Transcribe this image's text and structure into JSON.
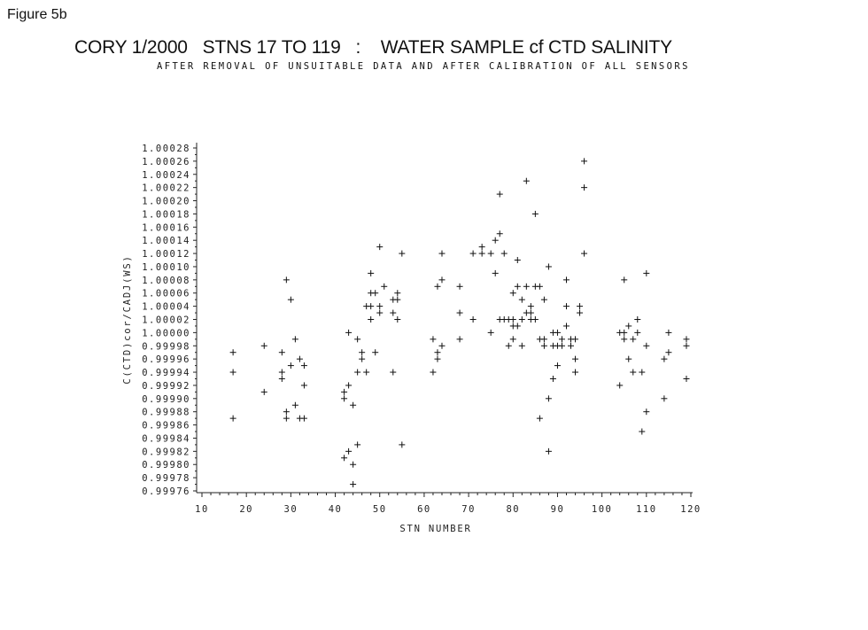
{
  "figure_label": "Figure 5b",
  "chart_data": {
    "type": "scatter",
    "title": "CORY 1/2000   STNS 17 TO 119   :    WATER SAMPLE cf CTD SALINITY",
    "subtitle": "AFTER REMOVAL OF UNSUITABLE DATA AND AFTER CALIBRATION OF ALL SENSORS",
    "xlabel": "STN NUMBER",
    "ylabel": "C(CTD)cor/CADJ(WS)",
    "xlim": [
      10,
      120
    ],
    "ylim": [
      0.99976,
      1.00028
    ],
    "grid": false,
    "marker": "+",
    "x_ticks": [
      "10",
      "20",
      "30",
      "40",
      "50",
      "60",
      "70",
      "80",
      "90",
      "100",
      "110",
      "120"
    ],
    "y_ticks": [
      "1.00028",
      "1.00026",
      "1.00024",
      "1.00022",
      "1.00020",
      "1.00018",
      "1.00016",
      "1.00014",
      "1.00012",
      "1.00010",
      "1.00008",
      "1.00006",
      "1.00004",
      "1.00002",
      "1.00000",
      "0.99998",
      "0.99996",
      "0.99994",
      "0.99992",
      "0.99990",
      "0.99988",
      "0.99986",
      "0.99984",
      "0.99982",
      "0.99980",
      "0.99978",
      "0.99976"
    ],
    "points": [
      [
        17,
        0.99997
      ],
      [
        17,
        0.99994
      ],
      [
        17,
        0.99987
      ],
      [
        24,
        0.99998
      ],
      [
        24,
        0.99991
      ],
      [
        28,
        0.99997
      ],
      [
        28,
        0.99994
      ],
      [
        28,
        0.99993
      ],
      [
        29,
        1.00008
      ],
      [
        29,
        0.99988
      ],
      [
        29,
        0.99987
      ],
      [
        30,
        1.00005
      ],
      [
        30,
        0.99995
      ],
      [
        31,
        0.99999
      ],
      [
        31,
        0.99989
      ],
      [
        32,
        0.99996
      ],
      [
        32,
        0.99987
      ],
      [
        33,
        0.99995
      ],
      [
        33,
        0.99992
      ],
      [
        33,
        0.99987
      ],
      [
        42,
        0.99991
      ],
      [
        42,
        0.9999
      ],
      [
        42,
        0.99981
      ],
      [
        43,
        1.0
      ],
      [
        43,
        0.99992
      ],
      [
        43,
        0.99982
      ],
      [
        44,
        0.99989
      ],
      [
        44,
        0.9998
      ],
      [
        44,
        0.99977
      ],
      [
        45,
        0.99999
      ],
      [
        45,
        0.99994
      ],
      [
        45,
        0.99983
      ],
      [
        46,
        0.99997
      ],
      [
        46,
        0.99996
      ],
      [
        47,
        1.00004
      ],
      [
        47,
        0.99994
      ],
      [
        48,
        1.00009
      ],
      [
        48,
        1.00006
      ],
      [
        48,
        1.00004
      ],
      [
        48,
        1.00002
      ],
      [
        49,
        1.00006
      ],
      [
        49,
        0.99997
      ],
      [
        50,
        1.00013
      ],
      [
        50,
        1.00004
      ],
      [
        50,
        1.00003
      ],
      [
        51,
        1.00007
      ],
      [
        53,
        1.00005
      ],
      [
        53,
        1.00003
      ],
      [
        53,
        0.99994
      ],
      [
        54,
        1.00006
      ],
      [
        54,
        1.00005
      ],
      [
        54,
        1.00002
      ],
      [
        55,
        1.00012
      ],
      [
        55,
        0.99983
      ],
      [
        62,
        0.99999
      ],
      [
        62,
        0.99994
      ],
      [
        63,
        1.00007
      ],
      [
        63,
        0.99997
      ],
      [
        63,
        0.99996
      ],
      [
        64,
        1.00012
      ],
      [
        64,
        1.00008
      ],
      [
        64,
        0.99998
      ],
      [
        68,
        1.00007
      ],
      [
        68,
        1.00003
      ],
      [
        68,
        0.99999
      ],
      [
        71,
        1.00012
      ],
      [
        71,
        1.00002
      ],
      [
        73,
        1.00013
      ],
      [
        73,
        1.00012
      ],
      [
        75,
        1.00012
      ],
      [
        75,
        1.0
      ],
      [
        76,
        1.00014
      ],
      [
        76,
        1.00009
      ],
      [
        77,
        1.00021
      ],
      [
        77,
        1.00015
      ],
      [
        77,
        1.00002
      ],
      [
        78,
        1.00012
      ],
      [
        78,
        1.00002
      ],
      [
        79,
        1.00002
      ],
      [
        79,
        0.99998
      ],
      [
        80,
        1.00006
      ],
      [
        80,
        1.00002
      ],
      [
        80,
        1.00001
      ],
      [
        80,
        0.99999
      ],
      [
        81,
        1.00011
      ],
      [
        81,
        1.00007
      ],
      [
        81,
        1.00001
      ],
      [
        82,
        1.00005
      ],
      [
        82,
        1.00002
      ],
      [
        82,
        0.99998
      ],
      [
        83,
        1.00023
      ],
      [
        83,
        1.00007
      ],
      [
        83,
        1.00003
      ],
      [
        84,
        1.00004
      ],
      [
        84,
        1.00003
      ],
      [
        84,
        1.00002
      ],
      [
        85,
        1.00018
      ],
      [
        85,
        1.00007
      ],
      [
        85,
        1.00002
      ],
      [
        86,
        1.00007
      ],
      [
        86,
        0.99999
      ],
      [
        86,
        0.99987
      ],
      [
        87,
        1.00005
      ],
      [
        87,
        0.99999
      ],
      [
        87,
        0.99998
      ],
      [
        88,
        1.0001
      ],
      [
        88,
        0.9999
      ],
      [
        88,
        0.99982
      ],
      [
        89,
        1.0
      ],
      [
        89,
        0.99998
      ],
      [
        89,
        0.99993
      ],
      [
        90,
        1.0
      ],
      [
        90,
        0.99998
      ],
      [
        90,
        0.99995
      ],
      [
        91,
        0.99999
      ],
      [
        91,
        0.99998
      ],
      [
        92,
        1.00008
      ],
      [
        92,
        1.00004
      ],
      [
        92,
        1.00001
      ],
      [
        93,
        0.99999
      ],
      [
        93,
        0.99998
      ],
      [
        94,
        0.99999
      ],
      [
        94,
        0.99996
      ],
      [
        94,
        0.99994
      ],
      [
        95,
        1.00004
      ],
      [
        95,
        1.00003
      ],
      [
        96,
        1.00026
      ],
      [
        96,
        1.00022
      ],
      [
        96,
        1.00012
      ],
      [
        104,
        1.0
      ],
      [
        104,
        0.99992
      ],
      [
        105,
        1.00008
      ],
      [
        105,
        1.0
      ],
      [
        105,
        0.99999
      ],
      [
        106,
        1.00001
      ],
      [
        106,
        0.99996
      ],
      [
        107,
        0.99999
      ],
      [
        107,
        0.99994
      ],
      [
        108,
        1.00002
      ],
      [
        108,
        1.0
      ],
      [
        109,
        0.99994
      ],
      [
        109,
        0.99985
      ],
      [
        110,
        1.00009
      ],
      [
        110,
        0.99998
      ],
      [
        110,
        0.99988
      ],
      [
        114,
        0.99996
      ],
      [
        114,
        0.9999
      ],
      [
        115,
        1.0
      ],
      [
        115,
        0.99997
      ],
      [
        119,
        0.99999
      ],
      [
        119,
        0.99998
      ],
      [
        119,
        0.99993
      ]
    ]
  }
}
